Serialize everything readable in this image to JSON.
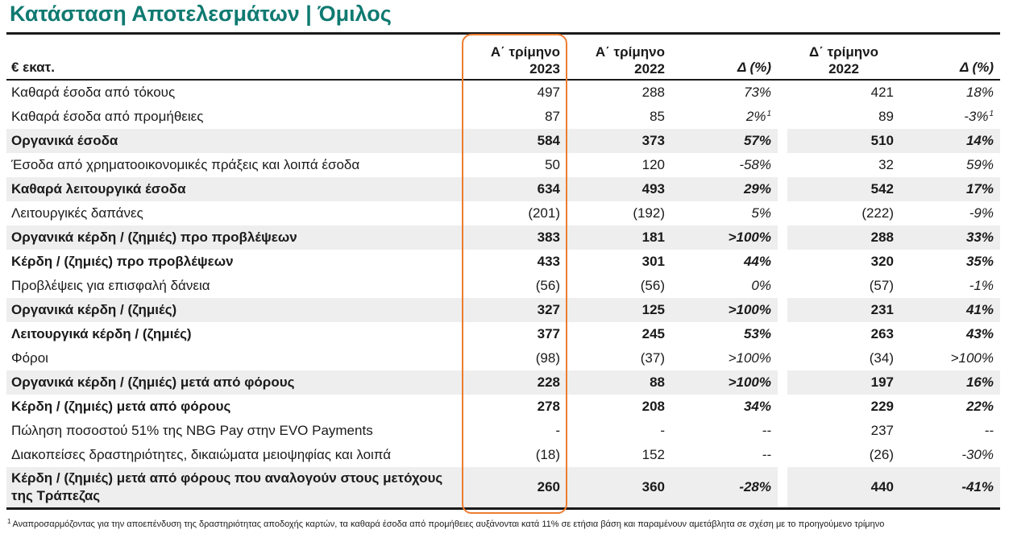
{
  "title": "Κατάσταση Αποτελεσμάτων | Όμιλος",
  "header": {
    "label": "€ εκατ.",
    "col1_line1": "Α΄ τρίμηνο",
    "col1_line2": "2023",
    "col2_line1": "Α΄ τρίμηνο",
    "col2_line2": "2022",
    "col3": "Δ (%)",
    "col4_line1": "Δ΄ τρίμηνο",
    "col4_line2": "2022",
    "col5": "Δ (%)"
  },
  "rows": [
    {
      "label": "Καθαρά έσοδα από τόκους",
      "q1_2023": "497",
      "q1_2022": "288",
      "d1": "73%",
      "d1_note": "",
      "q4_2022": "421",
      "d2": "18%",
      "d2_note": ""
    },
    {
      "label": "Καθαρά έσοδα από προμήθειες",
      "q1_2023": "87",
      "q1_2022": "85",
      "d1": "2%",
      "d1_note": "1",
      "q4_2022": "89",
      "d2": "-3%",
      "d2_note": "1"
    },
    {
      "label": "Οργανικά έσοδα",
      "q1_2023": "584",
      "q1_2022": "373",
      "d1": "57%",
      "d1_note": "",
      "q4_2022": "510",
      "d2": "14%",
      "d2_note": ""
    },
    {
      "label": "Έσοδα από χρηματοοικονομικές πράξεις και λοιπά έσοδα",
      "q1_2023": "50",
      "q1_2022": "120",
      "d1": "-58%",
      "d1_note": "",
      "q4_2022": "32",
      "d2": "59%",
      "d2_note": ""
    },
    {
      "label": "Καθαρά λειτουργικά έσοδα",
      "q1_2023": "634",
      "q1_2022": "493",
      "d1": "29%",
      "d1_note": "",
      "q4_2022": "542",
      "d2": "17%",
      "d2_note": ""
    },
    {
      "label": "Λειτουργικές δαπάνες",
      "q1_2023": "(201)",
      "q1_2022": "(192)",
      "d1": "5%",
      "d1_note": "",
      "q4_2022": "(222)",
      "d2": "-9%",
      "d2_note": ""
    },
    {
      "label": "Οργανικά κέρδη / (ζημιές) προ προβλέψεων",
      "q1_2023": "383",
      "q1_2022": "181",
      "d1": ">100%",
      "d1_note": "",
      "q4_2022": "288",
      "d2": "33%",
      "d2_note": ""
    },
    {
      "label": "Κέρδη / (ζημιές) προ προβλέψεων",
      "q1_2023": "433",
      "q1_2022": "301",
      "d1": "44%",
      "d1_note": "",
      "q4_2022": "320",
      "d2": "35%",
      "d2_note": ""
    },
    {
      "label": "Προβλέψεις για επισφαλή δάνεια",
      "q1_2023": "(56)",
      "q1_2022": "(56)",
      "d1": "0%",
      "d1_note": "",
      "q4_2022": "(57)",
      "d2": "-1%",
      "d2_note": ""
    },
    {
      "label": "Οργανικά κέρδη / (ζημιές)",
      "q1_2023": "327",
      "q1_2022": "125",
      "d1": ">100%",
      "d1_note": "",
      "q4_2022": "231",
      "d2": "41%",
      "d2_note": ""
    },
    {
      "label": "Λειτουργικά κέρδη / (ζημιές)",
      "q1_2023": "377",
      "q1_2022": "245",
      "d1": "53%",
      "d1_note": "",
      "q4_2022": "263",
      "d2": "43%",
      "d2_note": ""
    },
    {
      "label": "Φόροι",
      "q1_2023": "(98)",
      "q1_2022": "(37)",
      "d1": ">100%",
      "d1_note": "",
      "q4_2022": "(34)",
      "d2": ">100%",
      "d2_note": ""
    },
    {
      "label": "Οργανικά κέρδη / (ζημιές) μετά από φόρους",
      "q1_2023": "228",
      "q1_2022": "88",
      "d1": ">100%",
      "d1_note": "",
      "q4_2022": "197",
      "d2": "16%",
      "d2_note": ""
    },
    {
      "label": "Κέρδη / (ζημιές) μετά από φόρους",
      "q1_2023": "278",
      "q1_2022": "208",
      "d1": "34%",
      "d1_note": "",
      "q4_2022": "229",
      "d2": "22%",
      "d2_note": ""
    },
    {
      "label": "Πώληση ποσοστού 51% της NBG Pay στην EVO Payments",
      "q1_2023": "-",
      "q1_2022": "-",
      "d1": "--",
      "d1_note": "",
      "q4_2022": "237",
      "d2": "--",
      "d2_note": ""
    },
    {
      "label": "Διακοπείσες δραστηριότητες, δικαιώματα μειοψηφίας και λοιπά",
      "q1_2023": "(18)",
      "q1_2022": "152",
      "d1": "--",
      "d1_note": "",
      "q4_2022": "(26)",
      "d2": "-30%",
      "d2_note": ""
    },
    {
      "label": "Κέρδη / (ζημιές) μετά από φόρους που αναλογούν στους μετόχους της Τράπεζας",
      "q1_2023": "260",
      "q1_2022": "360",
      "d1": "-28%",
      "d1_note": "",
      "q4_2022": "440",
      "d2": "-41%",
      "d2_note": ""
    }
  ],
  "footnote": {
    "marker": "1",
    "text": "Αναπροσαρμόζοντας για την αποεπένδυση της δραστηριότητας αποδοχής καρτών, τα καθαρά έσοδα από προμήθειες αυξάνονται κατά 11% σε ετήσια βάση και παραμένουν αμετάβλητα σε σχέση με το προηγούμενο τρίμηνο"
  },
  "colors": {
    "title": "#0f7a71",
    "highlight_border": "#ed7d31",
    "shaded_row": "#eeeeee"
  }
}
